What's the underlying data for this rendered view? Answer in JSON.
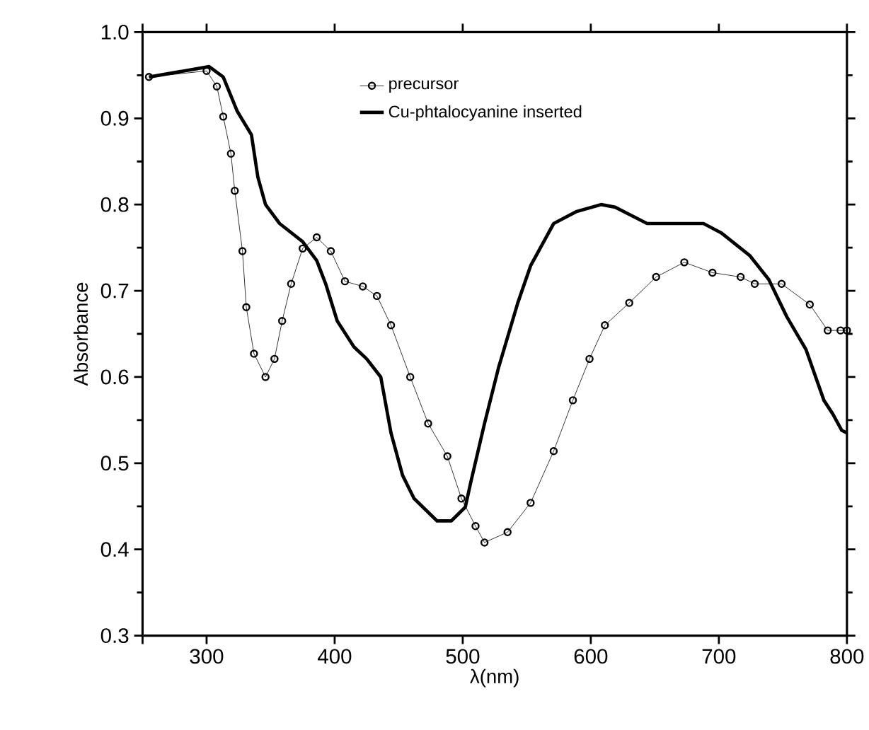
{
  "chart_data": {
    "type": "line",
    "xlabel": "λ(nm)",
    "ylabel": "Absorbance",
    "xlim": [
      250,
      800
    ],
    "ylim": [
      0.3,
      1.0
    ],
    "xticks": [
      {
        "value": 250,
        "label": null
      },
      300,
      400,
      500,
      600,
      700,
      800
    ],
    "yticks": [
      {
        "value": 0.3,
        "label": "0.3"
      },
      {
        "value": 0.4,
        "label": "0.4"
      },
      {
        "value": 0.5,
        "label": "0.5"
      },
      {
        "value": 0.6,
        "label": "0.6"
      },
      {
        "value": 0.7,
        "label": "0.7"
      },
      {
        "value": 0.8,
        "label": "0.8"
      },
      {
        "value": 0.9,
        "label": "0.9"
      },
      {
        "value": 1.0,
        "label": "1.0"
      }
    ],
    "legend": "top",
    "grid": false,
    "line_style": "solid",
    "series": [
      {
        "name": "precursor",
        "color": "#000000",
        "marker": "circle",
        "x": [
          255,
          300,
          308,
          313,
          319,
          322,
          328,
          331,
          337,
          346,
          353,
          359,
          366,
          375,
          386,
          397,
          408,
          422,
          433,
          444,
          459,
          473,
          488,
          499,
          510,
          517,
          535,
          553,
          571,
          586,
          599,
          611,
          630,
          651,
          673,
          695,
          717,
          728,
          749,
          771,
          785,
          795,
          800
        ],
        "values": [
          0.948,
          0.955,
          0.937,
          0.902,
          0.859,
          0.816,
          0.746,
          0.681,
          0.627,
          0.6,
          0.621,
          0.665,
          0.708,
          0.749,
          0.762,
          0.746,
          0.711,
          0.705,
          0.694,
          0.66,
          0.6,
          0.546,
          0.508,
          0.459,
          0.427,
          0.408,
          0.42,
          0.454,
          0.514,
          0.573,
          0.621,
          0.66,
          0.686,
          0.716,
          0.733,
          0.721,
          0.716,
          0.708,
          0.708,
          0.684,
          0.654,
          0.654,
          0.654
        ]
      },
      {
        "name": "Cu-phtalocyanine inserted",
        "color": "#000000",
        "marker": "none",
        "x": [
          255,
          302,
          313,
          324,
          335,
          340,
          346,
          357,
          375,
          386,
          393,
          402,
          415,
          425,
          436,
          444,
          453,
          462,
          480,
          491,
          502,
          506,
          517,
          528,
          543,
          553,
          571,
          589,
          608,
          619,
          644,
          688,
          702,
          724,
          739,
          753,
          768,
          782,
          789,
          796,
          800
        ],
        "values": [
          0.948,
          0.96,
          0.948,
          0.908,
          0.881,
          0.832,
          0.8,
          0.778,
          0.757,
          0.735,
          0.708,
          0.665,
          0.635,
          0.621,
          0.6,
          0.535,
          0.486,
          0.459,
          0.433,
          0.433,
          0.449,
          0.476,
          0.546,
          0.611,
          0.686,
          0.729,
          0.778,
          0.792,
          0.8,
          0.797,
          0.778,
          0.778,
          0.767,
          0.741,
          0.713,
          0.67,
          0.632,
          0.573,
          0.557,
          0.538,
          0.535
        ]
      }
    ]
  }
}
